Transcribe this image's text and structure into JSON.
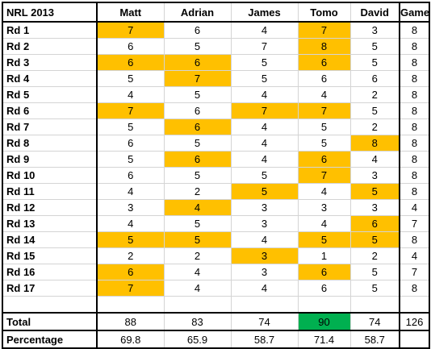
{
  "table": {
    "corner_label": "NRL 2013",
    "columns": [
      "Matt",
      "Adrian",
      "James",
      "Tomo",
      "David",
      "Games"
    ],
    "rows": [
      {
        "label": "Rd 1",
        "values": [
          "7",
          "6",
          "4",
          "7",
          "3",
          "8"
        ],
        "highlight": [
          true,
          false,
          false,
          true,
          false,
          false
        ]
      },
      {
        "label": "Rd 2",
        "values": [
          "6",
          "5",
          "7",
          "8",
          "5",
          "8"
        ],
        "highlight": [
          false,
          false,
          false,
          true,
          false,
          false
        ]
      },
      {
        "label": "Rd 3",
        "values": [
          "6",
          "6",
          "5",
          "6",
          "5",
          "8"
        ],
        "highlight": [
          true,
          true,
          false,
          true,
          false,
          false
        ]
      },
      {
        "label": "Rd 4",
        "values": [
          "5",
          "7",
          "5",
          "6",
          "6",
          "8"
        ],
        "highlight": [
          false,
          true,
          false,
          false,
          false,
          false
        ]
      },
      {
        "label": "Rd 5",
        "values": [
          "4",
          "5",
          "4",
          "4",
          "2",
          "8"
        ],
        "highlight": [
          false,
          false,
          false,
          false,
          false,
          false
        ]
      },
      {
        "label": "Rd 6",
        "values": [
          "7",
          "6",
          "7",
          "7",
          "5",
          "8"
        ],
        "highlight": [
          true,
          false,
          true,
          true,
          false,
          false
        ]
      },
      {
        "label": "Rd 7",
        "values": [
          "5",
          "6",
          "4",
          "5",
          "2",
          "8"
        ],
        "highlight": [
          false,
          true,
          false,
          false,
          false,
          false
        ]
      },
      {
        "label": "Rd 8",
        "values": [
          "6",
          "5",
          "4",
          "5",
          "8",
          "8"
        ],
        "highlight": [
          false,
          false,
          false,
          false,
          true,
          false
        ]
      },
      {
        "label": "Rd 9",
        "values": [
          "5",
          "6",
          "4",
          "6",
          "4",
          "8"
        ],
        "highlight": [
          false,
          true,
          false,
          true,
          false,
          false
        ]
      },
      {
        "label": "Rd 10",
        "values": [
          "6",
          "5",
          "5",
          "7",
          "3",
          "8"
        ],
        "highlight": [
          false,
          false,
          false,
          true,
          false,
          false
        ]
      },
      {
        "label": "Rd 11",
        "values": [
          "4",
          "2",
          "5",
          "4",
          "5",
          "8"
        ],
        "highlight": [
          false,
          false,
          true,
          false,
          true,
          false
        ]
      },
      {
        "label": "Rd 12",
        "values": [
          "3",
          "4",
          "3",
          "3",
          "3",
          "4"
        ],
        "highlight": [
          false,
          true,
          false,
          false,
          false,
          false
        ]
      },
      {
        "label": "Rd 13",
        "values": [
          "4",
          "5",
          "3",
          "4",
          "6",
          "7"
        ],
        "highlight": [
          false,
          false,
          false,
          false,
          true,
          false
        ]
      },
      {
        "label": "Rd 14",
        "values": [
          "5",
          "5",
          "4",
          "5",
          "5",
          "8"
        ],
        "highlight": [
          true,
          true,
          false,
          true,
          true,
          false
        ]
      },
      {
        "label": "Rd 15",
        "values": [
          "2",
          "2",
          "3",
          "1",
          "2",
          "4"
        ],
        "highlight": [
          false,
          false,
          true,
          false,
          false,
          false
        ]
      },
      {
        "label": "Rd 16",
        "values": [
          "6",
          "4",
          "3",
          "6",
          "5",
          "7"
        ],
        "highlight": [
          true,
          false,
          false,
          true,
          false,
          false
        ]
      },
      {
        "label": "Rd 17",
        "values": [
          "7",
          "4",
          "4",
          "6",
          "5",
          "8"
        ],
        "highlight": [
          true,
          false,
          false,
          false,
          false,
          false
        ]
      }
    ],
    "total": {
      "label": "Total",
      "values": [
        "88",
        "83",
        "74",
        "90",
        "74",
        "126"
      ]
    },
    "percentage": {
      "label": "Percentage",
      "values": [
        "69.8",
        "65.9",
        "58.7",
        "71.4",
        "58.7",
        ""
      ]
    }
  },
  "colors": {
    "highlight": "#ffc000",
    "best_total": "#00b050",
    "grid_line": "#d4d4d4",
    "border": "#000000"
  }
}
